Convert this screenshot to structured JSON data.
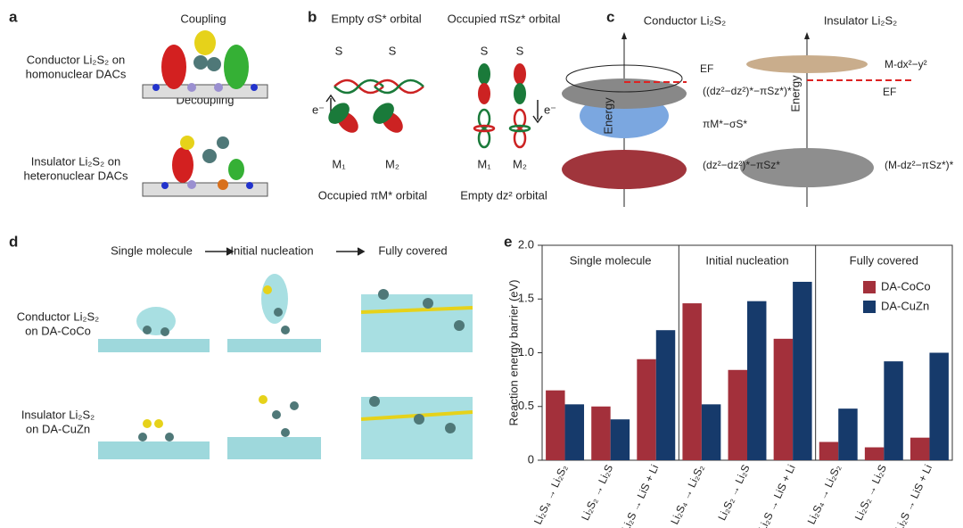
{
  "panel_a": {
    "label": "a",
    "top_title": "Coupling",
    "top_caption": [
      "Conductor Li₂S₂ on",
      "homonuclear DACs"
    ],
    "bottom_title": "Decoupling",
    "bottom_caption": [
      "Insulator Li₂S₂ on",
      "heteronuclear DACs"
    ]
  },
  "panel_b": {
    "label": "b",
    "left_title": "Empty σS* orbital",
    "right_title": "Occupied πSz* orbital",
    "atoms": [
      "S",
      "S",
      "S",
      "S"
    ],
    "metals": [
      "M₁",
      "M₂",
      "M₁",
      "M₂"
    ],
    "electrons": [
      "e⁻",
      "e⁻"
    ],
    "left_caption": "Occupied πM* orbital",
    "right_caption": "Empty dz² orbital"
  },
  "panel_c": {
    "label": "c",
    "left_title": "Conductor Li₂S₂",
    "right_title": "Insulator Li₂S₂",
    "axis_labels": [
      "Energy",
      "Energy"
    ],
    "fermi_labels": [
      "EF",
      "EF"
    ],
    "left_levels": [
      "((dz²−dz²)*−πSz*)*",
      "πM*−σS*",
      "(dz²−dz²)*−πSz*"
    ],
    "right_levels": [
      "M-dx²−y²",
      "(M-dz²−πSz*)*"
    ]
  },
  "panel_d": {
    "label": "d",
    "stages": [
      "Single molecule",
      "Initial nucleation",
      "Fully covered"
    ],
    "top_caption": [
      "Conductor Li₂S₂",
      "on DA-CoCo"
    ],
    "bottom_caption": [
      "Insulator Li₂S₂",
      "on DA-CuZn"
    ]
  },
  "chart_data": {
    "type": "bar",
    "label": "e",
    "ylabel": "Reaction energy barrier (eV)",
    "sections": [
      "Single molecule",
      "Initial nucleation",
      "Fully covered"
    ],
    "categories": [
      "Li₂S₄ → Li₂S₂",
      "Li₂S₂ → Li₂S",
      "Li₂S → LiS + Li",
      "Li₂S₄ → Li₂S₂",
      "Li₂S₂ → Li₂S",
      "Li₂S → LiS + Li",
      "Li₂S₄ → Li₂S₂",
      "Li₂S₂ → Li₂S",
      "Li₂S → LiS + Li"
    ],
    "series": [
      {
        "name": "DA-CoCo",
        "color": "#a3303b",
        "values": [
          0.65,
          0.5,
          0.94,
          1.46,
          0.84,
          1.13,
          0.17,
          0.12,
          0.21
        ]
      },
      {
        "name": "DA-CuZn",
        "color": "#163a6b",
        "values": [
          0.52,
          0.38,
          1.21,
          0.52,
          1.48,
          1.66,
          0.48,
          0.92,
          1.0
        ]
      }
    ],
    "ylim": [
      0,
      2.0
    ],
    "yticks": [
      0,
      0.5,
      {
        "value": 1.0,
        "label": "1.0"
      },
      1.5,
      {
        "value": 2.0,
        "label": "2.0"
      }
    ],
    "legend": "upper right"
  }
}
